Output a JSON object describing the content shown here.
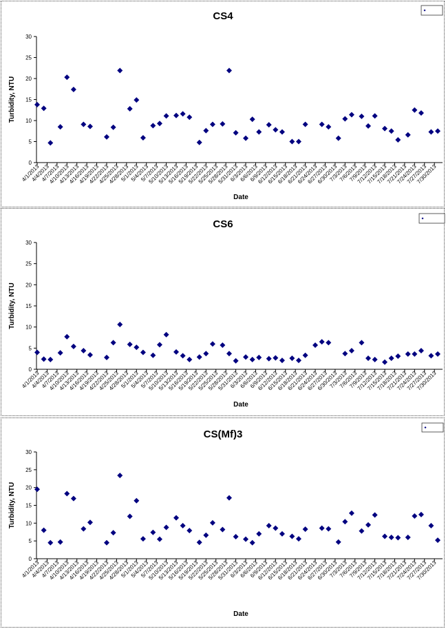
{
  "chart_data": [
    {
      "type": "scatter",
      "title": "CS4",
      "xlabel": "Date",
      "ylabel": "Turbidity, NTU",
      "ylim": [
        0,
        30
      ],
      "yticks": [
        0,
        5,
        10,
        15,
        20,
        25,
        30
      ],
      "grid": false,
      "legend_position": "top-right",
      "marker_color": "#000080",
      "x_range": [
        "4/1/2013",
        "7/31/2013"
      ],
      "x_tick_labels": [
        "4/1/2013",
        "4/4/2013",
        "4/7/2013",
        "4/10/2013",
        "4/13/2013",
        "4/16/2013",
        "4/19/2013",
        "4/22/2013",
        "4/25/2013",
        "4/28/2013",
        "5/1/2013",
        "5/4/2013",
        "5/7/2013",
        "5/10/2013",
        "5/13/2013",
        "5/16/2013",
        "5/19/2013",
        "5/22/2013",
        "5/25/2013",
        "5/28/2013",
        "5/31/2013",
        "6/3/2013",
        "6/6/2013",
        "6/9/2013",
        "6/12/2013",
        "6/15/2013",
        "6/18/2013",
        "6/21/2013",
        "6/24/2013",
        "6/27/2013",
        "6/30/2013",
        "7/3/2013",
        "7/6/2013",
        "7/9/2013",
        "7/12/2013",
        "7/15/2013",
        "7/18/2013",
        "7/21/2013",
        "7/24/2013",
        "7/27/2013",
        "7/30/2013"
      ],
      "points": [
        {
          "x": "4/1/2013",
          "y": 13.8
        },
        {
          "x": "4/3/2013",
          "y": 12.9
        },
        {
          "x": "4/5/2013",
          "y": 4.7
        },
        {
          "x": "4/8/2013",
          "y": 8.5
        },
        {
          "x": "4/10/2013",
          "y": 20.3
        },
        {
          "x": "4/12/2013",
          "y": 17.4
        },
        {
          "x": "4/15/2013",
          "y": 9.1
        },
        {
          "x": "4/17/2013",
          "y": 8.6
        },
        {
          "x": "4/22/2013",
          "y": 6.1
        },
        {
          "x": "4/24/2013",
          "y": 8.4
        },
        {
          "x": "4/26/2013",
          "y": 21.9
        },
        {
          "x": "4/29/2013",
          "y": 12.8
        },
        {
          "x": "5/1/2013",
          "y": 14.9
        },
        {
          "x": "5/3/2013",
          "y": 5.9
        },
        {
          "x": "5/6/2013",
          "y": 8.8
        },
        {
          "x": "5/8/2013",
          "y": 9.3
        },
        {
          "x": "5/10/2013",
          "y": 11.1
        },
        {
          "x": "5/13/2013",
          "y": 11.2
        },
        {
          "x": "5/15/2013",
          "y": 11.6
        },
        {
          "x": "5/17/2013",
          "y": 10.8
        },
        {
          "x": "5/20/2013",
          "y": 4.8
        },
        {
          "x": "5/22/2013",
          "y": 7.6
        },
        {
          "x": "5/24/2013",
          "y": 9.1
        },
        {
          "x": "5/27/2013",
          "y": 9.2
        },
        {
          "x": "5/29/2013",
          "y": 21.9
        },
        {
          "x": "5/31/2013",
          "y": 7.1
        },
        {
          "x": "6/3/2013",
          "y": 5.8
        },
        {
          "x": "6/5/2013",
          "y": 10.3
        },
        {
          "x": "6/7/2013",
          "y": 7.3
        },
        {
          "x": "6/10/2013",
          "y": 9.0
        },
        {
          "x": "6/12/2013",
          "y": 7.8
        },
        {
          "x": "6/14/2013",
          "y": 7.3
        },
        {
          "x": "6/17/2013",
          "y": 5.0
        },
        {
          "x": "6/19/2013",
          "y": 5.0
        },
        {
          "x": "6/21/2013",
          "y": 9.1
        },
        {
          "x": "6/26/2013",
          "y": 9.1
        },
        {
          "x": "6/28/2013",
          "y": 8.5
        },
        {
          "x": "7/1/2013",
          "y": 5.8
        },
        {
          "x": "7/3/2013",
          "y": 10.4
        },
        {
          "x": "7/5/2013",
          "y": 11.4
        },
        {
          "x": "7/8/2013",
          "y": 11.0
        },
        {
          "x": "7/10/2013",
          "y": 8.7
        },
        {
          "x": "7/12/2013",
          "y": 11.1
        },
        {
          "x": "7/15/2013",
          "y": 8.1
        },
        {
          "x": "7/17/2013",
          "y": 7.5
        },
        {
          "x": "7/19/2013",
          "y": 5.4
        },
        {
          "x": "7/22/2013",
          "y": 6.6
        },
        {
          "x": "7/24/2013",
          "y": 12.5
        },
        {
          "x": "7/26/2013",
          "y": 11.8
        },
        {
          "x": "7/29/2013",
          "y": 7.3
        },
        {
          "x": "7/31/2013",
          "y": 7.5
        }
      ]
    },
    {
      "type": "scatter",
      "title": "CS6",
      "xlabel": "Date",
      "ylabel": "Turbidity, NTU",
      "ylim": [
        0,
        30
      ],
      "yticks": [
        0,
        5,
        10,
        15,
        20,
        25,
        30
      ],
      "grid": false,
      "legend_position": "top-right",
      "marker_color": "#000080",
      "x_range": [
        "4/1/2013",
        "7/31/2013"
      ],
      "x_tick_labels": [
        "4/1/2013",
        "4/4/2013",
        "4/7/2013",
        "4/10/2013",
        "4/13/2013",
        "4/16/2013",
        "4/19/2013",
        "4/22/2013",
        "4/25/2013",
        "4/28/2013",
        "5/1/2013",
        "5/4/2013",
        "5/7/2013",
        "5/10/2013",
        "5/13/2013",
        "5/16/2013",
        "5/19/2013",
        "5/22/2013",
        "5/25/2013",
        "5/28/2013",
        "5/31/2013",
        "6/3/2013",
        "6/6/2013",
        "6/9/2013",
        "6/12/2013",
        "6/15/2013",
        "6/18/2013",
        "6/21/2013",
        "6/24/2013",
        "6/27/2013",
        "6/30/2013",
        "7/3/2013",
        "7/6/2013",
        "7/9/2013",
        "7/12/2013",
        "7/15/2013",
        "7/18/2013",
        "7/21/2013",
        "7/24/2013",
        "7/27/2013",
        "7/30/2013"
      ],
      "points": [
        {
          "x": "4/1/2013",
          "y": 4.0
        },
        {
          "x": "4/3/2013",
          "y": 2.4
        },
        {
          "x": "4/5/2013",
          "y": 2.3
        },
        {
          "x": "4/8/2013",
          "y": 3.9
        },
        {
          "x": "4/10/2013",
          "y": 7.7
        },
        {
          "x": "4/12/2013",
          "y": 5.4
        },
        {
          "x": "4/15/2013",
          "y": 4.4
        },
        {
          "x": "4/17/2013",
          "y": 3.4
        },
        {
          "x": "4/22/2013",
          "y": 2.8
        },
        {
          "x": "4/24/2013",
          "y": 6.3
        },
        {
          "x": "4/26/2013",
          "y": 10.6
        },
        {
          "x": "4/29/2013",
          "y": 5.9
        },
        {
          "x": "5/1/2013",
          "y": 5.2
        },
        {
          "x": "5/3/2013",
          "y": 4.0
        },
        {
          "x": "5/6/2013",
          "y": 3.3
        },
        {
          "x": "5/8/2013",
          "y": 5.8
        },
        {
          "x": "5/10/2013",
          "y": 8.2
        },
        {
          "x": "5/13/2013",
          "y": 4.1
        },
        {
          "x": "5/15/2013",
          "y": 3.2
        },
        {
          "x": "5/17/2013",
          "y": 2.3
        },
        {
          "x": "5/20/2013",
          "y": 2.9
        },
        {
          "x": "5/22/2013",
          "y": 3.7
        },
        {
          "x": "5/24/2013",
          "y": 6.0
        },
        {
          "x": "5/27/2013",
          "y": 5.7
        },
        {
          "x": "5/29/2013",
          "y": 3.7
        },
        {
          "x": "5/31/2013",
          "y": 2.0
        },
        {
          "x": "6/3/2013",
          "y": 2.9
        },
        {
          "x": "6/5/2013",
          "y": 2.3
        },
        {
          "x": "6/7/2013",
          "y": 2.8
        },
        {
          "x": "6/10/2013",
          "y": 2.5
        },
        {
          "x": "6/12/2013",
          "y": 2.7
        },
        {
          "x": "6/14/2013",
          "y": 2.1
        },
        {
          "x": "6/17/2013",
          "y": 2.6
        },
        {
          "x": "6/19/2013",
          "y": 2.1
        },
        {
          "x": "6/21/2013",
          "y": 3.3
        },
        {
          "x": "6/24/2013",
          "y": 5.7
        },
        {
          "x": "6/26/2013",
          "y": 6.5
        },
        {
          "x": "6/28/2013",
          "y": 6.3
        },
        {
          "x": "7/3/2013",
          "y": 3.7
        },
        {
          "x": "7/5/2013",
          "y": 4.4
        },
        {
          "x": "7/8/2013",
          "y": 6.3
        },
        {
          "x": "7/10/2013",
          "y": 2.6
        },
        {
          "x": "7/12/2013",
          "y": 2.3
        },
        {
          "x": "7/15/2013",
          "y": 1.7
        },
        {
          "x": "7/17/2013",
          "y": 2.6
        },
        {
          "x": "7/19/2013",
          "y": 3.1
        },
        {
          "x": "7/22/2013",
          "y": 3.6
        },
        {
          "x": "7/24/2013",
          "y": 3.6
        },
        {
          "x": "7/26/2013",
          "y": 4.4
        },
        {
          "x": "7/29/2013",
          "y": 3.2
        },
        {
          "x": "7/31/2013",
          "y": 3.6
        }
      ]
    },
    {
      "type": "scatter",
      "title": "CS(Mf)3",
      "xlabel": "Date",
      "ylabel": "Turbidity, NTU",
      "ylim": [
        0,
        30
      ],
      "yticks": [
        0,
        5,
        10,
        15,
        20,
        25,
        30
      ],
      "grid": false,
      "legend_position": "top-right",
      "marker_color": "#000080",
      "x_range": [
        "4/1/2013",
        "7/31/2013"
      ],
      "x_tick_labels": [
        "4/1/2013",
        "4/4/2013",
        "4/7/2013",
        "4/10/2013",
        "4/13/2013",
        "4/16/2013",
        "4/19/2013",
        "4/22/2013",
        "4/25/2013",
        "4/28/2013",
        "5/1/2013",
        "5/4/2013",
        "5/7/2013",
        "5/10/2013",
        "5/13/2013",
        "5/16/2013",
        "5/19/2013",
        "5/22/2013",
        "5/25/2013",
        "5/28/2013",
        "5/31/2013",
        "6/3/2013",
        "6/6/2013",
        "6/9/2013",
        "6/12/2013",
        "6/15/2013",
        "6/18/2013",
        "6/21/2013",
        "6/24/2013",
        "6/27/2013",
        "6/30/2013",
        "7/3/2013",
        "7/6/2013",
        "7/9/2013",
        "7/12/2013",
        "7/15/2013",
        "7/18/2013",
        "7/21/2013",
        "7/24/2013",
        "7/27/2013",
        "7/30/2013"
      ],
      "points": [
        {
          "x": "4/1/2013",
          "y": 19.5
        },
        {
          "x": "4/3/2013",
          "y": 8.0
        },
        {
          "x": "4/5/2013",
          "y": 4.5
        },
        {
          "x": "4/8/2013",
          "y": 4.7
        },
        {
          "x": "4/10/2013",
          "y": 18.3
        },
        {
          "x": "4/12/2013",
          "y": 16.9
        },
        {
          "x": "4/15/2013",
          "y": 8.4
        },
        {
          "x": "4/17/2013",
          "y": 10.2
        },
        {
          "x": "4/22/2013",
          "y": 4.5
        },
        {
          "x": "4/24/2013",
          "y": 7.3
        },
        {
          "x": "4/26/2013",
          "y": 23.4
        },
        {
          "x": "4/29/2013",
          "y": 11.9
        },
        {
          "x": "5/1/2013",
          "y": 16.3
        },
        {
          "x": "5/3/2013",
          "y": 5.6
        },
        {
          "x": "5/6/2013",
          "y": 7.4
        },
        {
          "x": "5/8/2013",
          "y": 5.5
        },
        {
          "x": "5/10/2013",
          "y": 8.8
        },
        {
          "x": "5/13/2013",
          "y": 11.5
        },
        {
          "x": "5/15/2013",
          "y": 9.3
        },
        {
          "x": "5/17/2013",
          "y": 7.9
        },
        {
          "x": "5/20/2013",
          "y": 4.6
        },
        {
          "x": "5/22/2013",
          "y": 6.6
        },
        {
          "x": "5/24/2013",
          "y": 10.1
        },
        {
          "x": "5/27/2013",
          "y": 8.2
        },
        {
          "x": "5/29/2013",
          "y": 17.1
        },
        {
          "x": "5/31/2013",
          "y": 6.2
        },
        {
          "x": "6/3/2013",
          "y": 5.5
        },
        {
          "x": "6/5/2013",
          "y": 4.5
        },
        {
          "x": "6/7/2013",
          "y": 7.0
        },
        {
          "x": "6/10/2013",
          "y": 9.3
        },
        {
          "x": "6/12/2013",
          "y": 8.6
        },
        {
          "x": "6/14/2013",
          "y": 7.0
        },
        {
          "x": "6/17/2013",
          "y": 6.3
        },
        {
          "x": "6/19/2013",
          "y": 5.6
        },
        {
          "x": "6/21/2013",
          "y": 8.3
        },
        {
          "x": "6/26/2013",
          "y": 8.6
        },
        {
          "x": "6/28/2013",
          "y": 8.4
        },
        {
          "x": "7/1/2013",
          "y": 4.7
        },
        {
          "x": "7/3/2013",
          "y": 10.4
        },
        {
          "x": "7/5/2013",
          "y": 12.8
        },
        {
          "x": "7/8/2013",
          "y": 7.8
        },
        {
          "x": "7/10/2013",
          "y": 9.5
        },
        {
          "x": "7/12/2013",
          "y": 12.3
        },
        {
          "x": "7/15/2013",
          "y": 6.3
        },
        {
          "x": "7/17/2013",
          "y": 6.0
        },
        {
          "x": "7/19/2013",
          "y": 5.9
        },
        {
          "x": "7/22/2013",
          "y": 6.0
        },
        {
          "x": "7/24/2013",
          "y": 12.0
        },
        {
          "x": "7/26/2013",
          "y": 12.4
        },
        {
          "x": "7/29/2013",
          "y": 9.3
        },
        {
          "x": "7/31/2013",
          "y": 5.2
        }
      ]
    }
  ]
}
